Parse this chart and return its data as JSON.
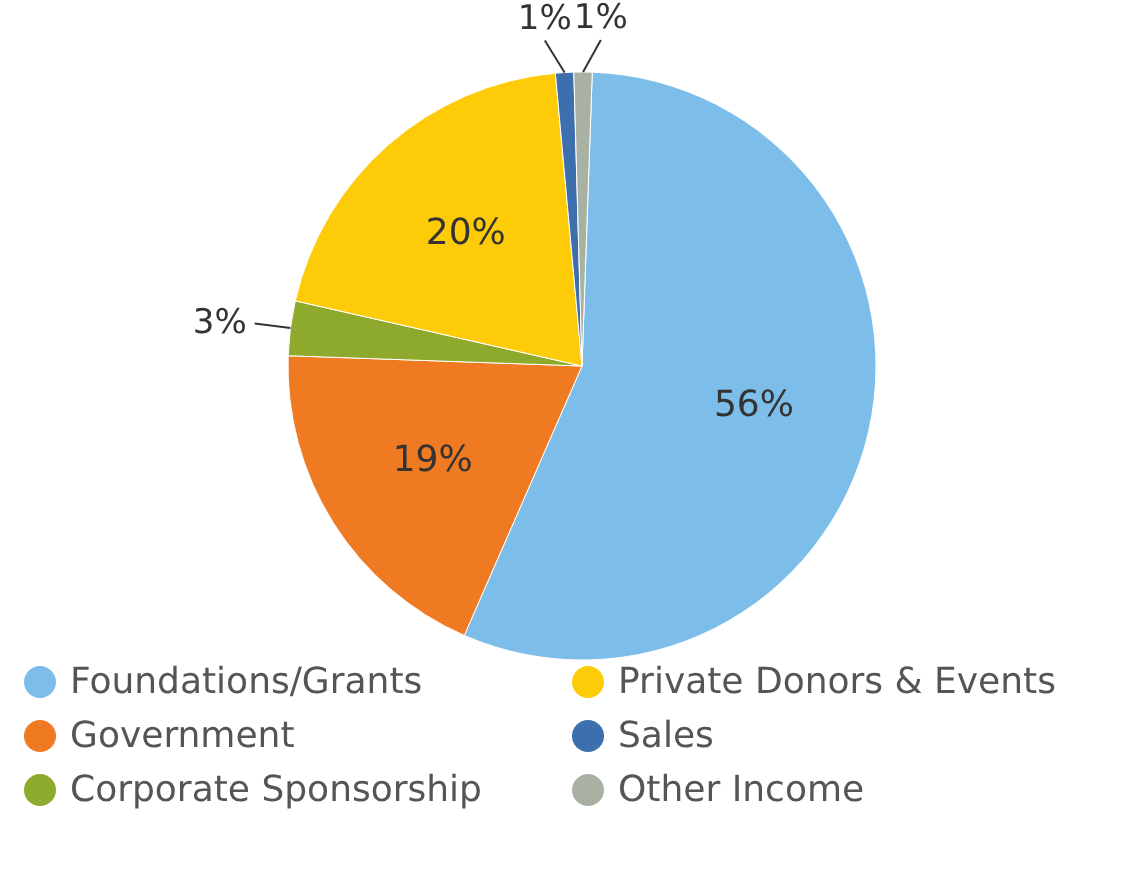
{
  "chart_data": {
    "type": "pie",
    "categories": [
      "Foundations/Grants",
      "Government",
      "Corporate Sponsorship",
      "Private Donors & Events",
      "Sales",
      "Other Income"
    ],
    "values": [
      56,
      19,
      3,
      20,
      1,
      1
    ],
    "colors": [
      "#7dbde9",
      "#f07a22",
      "#8eaa2c",
      "#fecb09",
      "#3d6fae",
      "#a9b1a3"
    ],
    "value_labels": [
      "56%",
      "19%",
      "3%",
      "20%",
      "1%",
      "1%"
    ],
    "legend": "bottom"
  }
}
